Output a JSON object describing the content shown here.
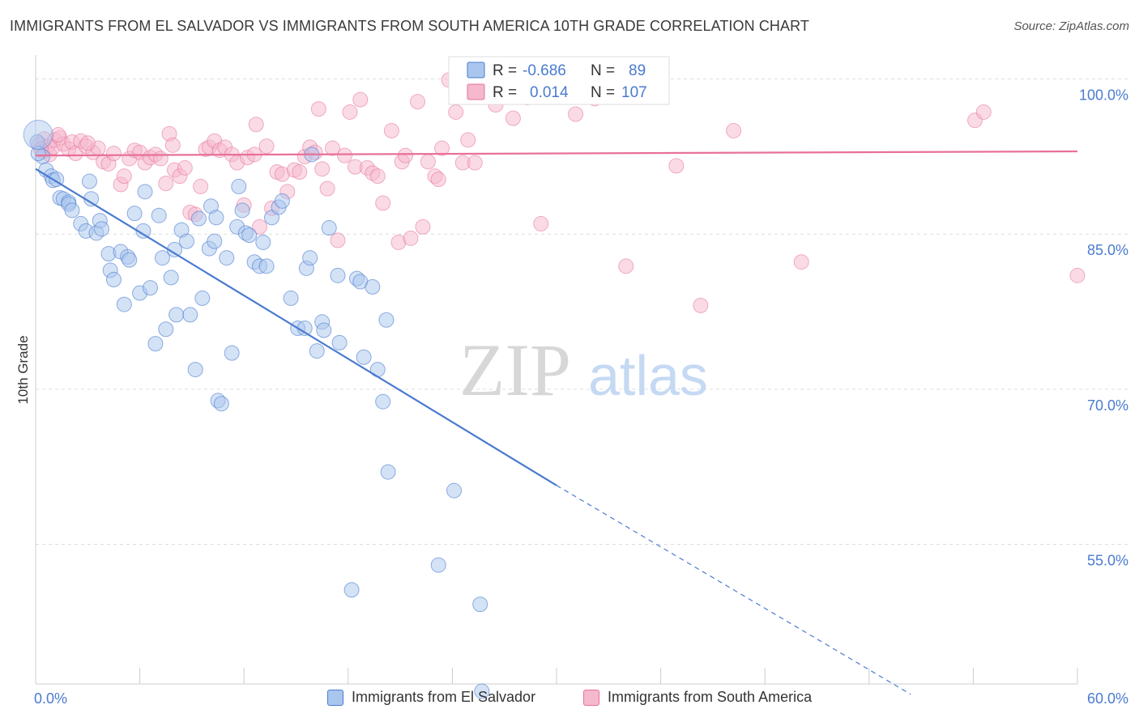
{
  "title": "IMMIGRANTS FROM EL SALVADOR VS IMMIGRANTS FROM SOUTH AMERICA 10TH GRADE CORRELATION CHART",
  "source": "Source: ZipAtlas.com",
  "watermark": {
    "zip": "ZIP",
    "atlas": "atlas"
  },
  "legend": {
    "s1": {
      "r_label": "R =",
      "r_value": "-0.686",
      "n_label": "N =",
      "n_value": "89"
    },
    "s2": {
      "r_label": "R =",
      "r_value": "0.014",
      "n_label": "N =",
      "n_value": "107"
    }
  },
  "bottom_legend": {
    "s1": "Immigrants from El Salvador",
    "s2": "Immigrants from South America"
  },
  "colors": {
    "blue": "#4a7bd0",
    "blue_fill": "#a9c6ee",
    "pink": "#e8709a",
    "pink_fill": "#f5b8cc",
    "grid": "#dddddd"
  },
  "chart_data": {
    "type": "scatter",
    "title": "IMMIGRANTS FROM EL SALVADOR VS IMMIGRANTS FROM SOUTH AMERICA 10TH GRADE CORRELATION CHART",
    "xlabel": "",
    "ylabel": "10th Grade",
    "xlim": [
      0,
      60
    ],
    "ylim": [
      41.5,
      102
    ],
    "x_tick_labels": [
      "0.0%",
      "60.0%"
    ],
    "y_ticks": [
      55,
      70,
      85,
      100
    ],
    "y_tick_labels": [
      "55.0%",
      "70.0%",
      "85.0%",
      "100.0%"
    ],
    "grid": true,
    "series": [
      {
        "name": "Immigrants from El Salvador",
        "color": "#4a7bd0",
        "R": -0.686,
        "N": 89,
        "trend": {
          "x0": 0,
          "y0": 91.3,
          "x1": 30,
          "y1": 60.7,
          "dash_to_x": 50.4,
          "dash_to_y": 40.5
        },
        "points": [
          [
            0.1,
            93.9
          ],
          [
            0.4,
            92.5
          ],
          [
            0.6,
            91.2
          ],
          [
            0.9,
            90.6
          ],
          [
            1.0,
            90.2
          ],
          [
            1.2,
            90.3
          ],
          [
            1.4,
            88.5
          ],
          [
            1.6,
            88.4
          ],
          [
            1.9,
            88.1
          ],
          [
            1.9,
            87.9
          ],
          [
            2.1,
            87.3
          ],
          [
            2.6,
            86.0
          ],
          [
            2.9,
            85.3
          ],
          [
            3.1,
            90.1
          ],
          [
            3.2,
            88.4
          ],
          [
            3.5,
            85.1
          ],
          [
            3.7,
            86.3
          ],
          [
            3.8,
            85.5
          ],
          [
            4.2,
            83.1
          ],
          [
            4.3,
            81.5
          ],
          [
            4.5,
            80.6
          ],
          [
            4.9,
            83.3
          ],
          [
            5.1,
            78.2
          ],
          [
            5.3,
            82.8
          ],
          [
            5.4,
            82.5
          ],
          [
            5.7,
            87.0
          ],
          [
            6.0,
            79.3
          ],
          [
            6.2,
            85.3
          ],
          [
            6.3,
            89.1
          ],
          [
            6.6,
            79.8
          ],
          [
            6.9,
            74.4
          ],
          [
            7.1,
            86.8
          ],
          [
            7.3,
            82.7
          ],
          [
            7.5,
            75.8
          ],
          [
            7.8,
            80.8
          ],
          [
            8.0,
            83.5
          ],
          [
            8.1,
            77.2
          ],
          [
            8.4,
            85.4
          ],
          [
            8.7,
            84.3
          ],
          [
            8.9,
            77.2
          ],
          [
            9.2,
            71.9
          ],
          [
            9.4,
            86.5
          ],
          [
            9.6,
            78.8
          ],
          [
            10.0,
            83.6
          ],
          [
            10.1,
            87.7
          ],
          [
            10.3,
            84.3
          ],
          [
            10.4,
            86.6
          ],
          [
            10.5,
            68.9
          ],
          [
            10.7,
            68.6
          ],
          [
            11.0,
            82.7
          ],
          [
            11.3,
            73.5
          ],
          [
            11.6,
            85.7
          ],
          [
            11.7,
            89.6
          ],
          [
            11.9,
            87.3
          ],
          [
            12.1,
            85.1
          ],
          [
            12.3,
            84.9
          ],
          [
            12.6,
            82.3
          ],
          [
            12.9,
            81.9
          ],
          [
            13.1,
            84.2
          ],
          [
            13.3,
            81.9
          ],
          [
            13.6,
            86.6
          ],
          [
            14.0,
            87.6
          ],
          [
            14.2,
            88.2
          ],
          [
            14.7,
            78.8
          ],
          [
            15.1,
            75.9
          ],
          [
            15.5,
            75.9
          ],
          [
            15.6,
            81.7
          ],
          [
            15.8,
            82.7
          ],
          [
            15.9,
            92.7
          ],
          [
            16.2,
            73.7
          ],
          [
            16.5,
            76.5
          ],
          [
            16.6,
            75.7
          ],
          [
            16.9,
            85.6
          ],
          [
            17.4,
            81.0
          ],
          [
            17.5,
            74.5
          ],
          [
            18.5,
            80.7
          ],
          [
            18.7,
            80.4
          ],
          [
            18.9,
            73.1
          ],
          [
            19.4,
            79.9
          ],
          [
            19.7,
            71.9
          ],
          [
            20.0,
            68.8
          ],
          [
            20.2,
            76.7
          ],
          [
            20.3,
            62.0
          ],
          [
            23.2,
            53.0
          ],
          [
            24.1,
            60.2
          ],
          [
            25.6,
            49.2
          ],
          [
            18.2,
            50.6
          ],
          [
            25.7,
            40.8
          ],
          [
            0.15,
            92.8
          ]
        ]
      },
      {
        "name": "Immigrants from South America",
        "color": "#e8709a",
        "R": 0.014,
        "N": 107,
        "trend": {
          "x0": 0,
          "y0": 92.6,
          "x1": 60,
          "y1": 93.0
        },
        "points": [
          [
            0.2,
            93.7
          ],
          [
            0.4,
            93.0
          ],
          [
            0.5,
            94.2
          ],
          [
            0.7,
            93.5
          ],
          [
            0.8,
            92.7
          ],
          [
            1.0,
            93.4
          ],
          [
            1.1,
            94.1
          ],
          [
            1.4,
            94.3
          ],
          [
            1.6,
            93.7
          ],
          [
            1.9,
            93.2
          ],
          [
            2.1,
            93.9
          ],
          [
            2.3,
            92.8
          ],
          [
            2.6,
            94.0
          ],
          [
            2.9,
            93.5
          ],
          [
            3.3,
            92.9
          ],
          [
            3.6,
            93.3
          ],
          [
            3.9,
            92.0
          ],
          [
            4.2,
            91.8
          ],
          [
            4.5,
            92.8
          ],
          [
            4.9,
            89.8
          ],
          [
            5.1,
            90.6
          ],
          [
            5.4,
            92.3
          ],
          [
            5.7,
            93.1
          ],
          [
            6.0,
            92.9
          ],
          [
            6.3,
            91.9
          ],
          [
            6.6,
            92.4
          ],
          [
            6.9,
            92.7
          ],
          [
            7.2,
            92.3
          ],
          [
            7.5,
            89.9
          ],
          [
            7.7,
            94.7
          ],
          [
            8.0,
            91.2
          ],
          [
            8.3,
            90.6
          ],
          [
            8.6,
            91.4
          ],
          [
            8.9,
            87.1
          ],
          [
            9.2,
            86.9
          ],
          [
            9.5,
            89.6
          ],
          [
            9.8,
            93.2
          ],
          [
            10.0,
            93.4
          ],
          [
            10.3,
            94.0
          ],
          [
            10.6,
            93.1
          ],
          [
            10.9,
            93.4
          ],
          [
            11.3,
            92.7
          ],
          [
            11.6,
            91.9
          ],
          [
            12.0,
            87.8
          ],
          [
            12.2,
            92.4
          ],
          [
            12.6,
            92.7
          ],
          [
            12.9,
            85.7
          ],
          [
            13.3,
            93.5
          ],
          [
            13.6,
            87.5
          ],
          [
            13.9,
            91.0
          ],
          [
            14.2,
            90.8
          ],
          [
            14.5,
            89.1
          ],
          [
            14.9,
            91.2
          ],
          [
            15.2,
            91.0
          ],
          [
            15.5,
            92.5
          ],
          [
            15.8,
            93.4
          ],
          [
            16.1,
            92.9
          ],
          [
            16.5,
            91.3
          ],
          [
            16.8,
            89.4
          ],
          [
            17.1,
            93.3
          ],
          [
            17.4,
            84.4
          ],
          [
            17.8,
            92.6
          ],
          [
            18.1,
            96.8
          ],
          [
            18.4,
            91.5
          ],
          [
            18.7,
            98.0
          ],
          [
            19.1,
            91.4
          ],
          [
            19.4,
            90.9
          ],
          [
            19.7,
            90.6
          ],
          [
            20.0,
            88.0
          ],
          [
            20.5,
            95.0
          ],
          [
            20.9,
            84.2
          ],
          [
            21.1,
            92.0
          ],
          [
            21.3,
            92.6
          ],
          [
            21.6,
            84.6
          ],
          [
            22.0,
            97.8
          ],
          [
            22.3,
            85.7
          ],
          [
            22.6,
            92.0
          ],
          [
            23.0,
            90.6
          ],
          [
            23.2,
            90.3
          ],
          [
            23.4,
            93.3
          ],
          [
            23.8,
            99.9
          ],
          [
            24.2,
            96.8
          ],
          [
            24.6,
            91.9
          ],
          [
            24.9,
            94.1
          ],
          [
            25.3,
            91.9
          ],
          [
            26.5,
            97.5
          ],
          [
            27.5,
            96.2
          ],
          [
            27.9,
            99.9
          ],
          [
            28.3,
            98.2
          ],
          [
            29.1,
            86.0
          ],
          [
            31.1,
            96.6
          ],
          [
            32.2,
            98.1
          ],
          [
            34.0,
            81.9
          ],
          [
            35.3,
            99.4
          ],
          [
            36.9,
            91.6
          ],
          [
            38.3,
            78.1
          ],
          [
            40.2,
            95.0
          ],
          [
            44.1,
            82.3
          ],
          [
            54.1,
            96.0
          ],
          [
            54.6,
            96.8
          ],
          [
            60.0,
            81.0
          ],
          [
            12.7,
            95.6
          ],
          [
            7.9,
            93.6
          ],
          [
            3.0,
            93.8
          ],
          [
            1.3,
            94.6
          ],
          [
            0.3,
            93.2
          ],
          [
            16.3,
            97.1
          ]
        ]
      }
    ]
  }
}
